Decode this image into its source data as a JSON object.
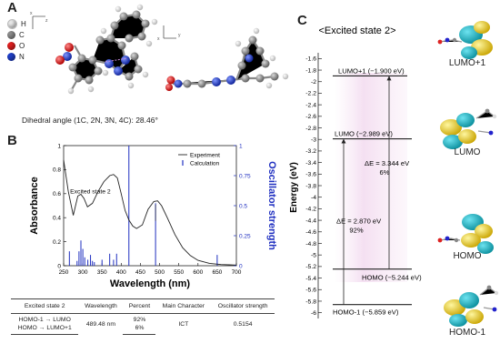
{
  "panelA": {
    "letter": "A",
    "legend": [
      {
        "sym": "H",
        "color": "#e8e8e8"
      },
      {
        "sym": "C",
        "color": "#8c8c8c"
      },
      {
        "sym": "O",
        "color": "#e02020"
      },
      {
        "sym": "N",
        "color": "#1f3fc8"
      }
    ],
    "dihedral_text": "Dihedral angle (1C, 2N, 3N, 4C): 28.46°"
  },
  "panelB": {
    "letter": "B",
    "chart_data": {
      "type": "line",
      "xlabel": "Wavelength (nm)",
      "ylabel": "Absorbance",
      "y2label": "Oscillator strength",
      "xlim": [
        250,
        700
      ],
      "ylim": [
        0,
        1.0
      ],
      "y2lim": [
        0,
        1.0
      ],
      "xticks": [
        250,
        300,
        350,
        400,
        450,
        500,
        550,
        600,
        650,
        700
      ],
      "yticks": [
        0,
        0.2,
        0.4,
        0.6,
        0.8,
        1.0
      ],
      "y2ticks": [
        0,
        0.25,
        0.5,
        0.75,
        1
      ],
      "series": [
        {
          "name": "Experiment",
          "x": [
            250,
            262,
            275,
            287,
            295,
            303,
            312,
            325,
            340,
            355,
            370,
            380,
            390,
            400,
            410,
            420,
            430,
            440,
            455,
            470,
            485,
            495,
            505,
            520,
            540,
            560,
            580,
            600,
            630,
            660,
            700
          ],
          "y": [
            0.88,
            0.62,
            0.42,
            0.58,
            0.595,
            0.56,
            0.49,
            0.52,
            0.62,
            0.7,
            0.75,
            0.76,
            0.73,
            0.6,
            0.46,
            0.38,
            0.33,
            0.31,
            0.34,
            0.47,
            0.535,
            0.54,
            0.5,
            0.4,
            0.26,
            0.15,
            0.085,
            0.045,
            0.02,
            0.01,
            0.005
          ]
        },
        {
          "name": "Calculation",
          "x": [
            265,
            285,
            290,
            295,
            300,
            305,
            313,
            320,
            325,
            330,
            350,
            370,
            380,
            388,
            420,
            489.48,
            650
          ],
          "f": [
            0.12,
            0.04,
            0.12,
            0.21,
            0.14,
            0.07,
            0.05,
            0.09,
            0.04,
            0.03,
            0.05,
            0.1,
            0.05,
            0.1,
            1.0,
            0.52,
            0.09
          ]
        }
      ],
      "legend": [
        "Experiment",
        "Calculation"
      ],
      "annotation": "Excited state 2"
    }
  },
  "table": {
    "headers": [
      "Excited state 2",
      "Wavelength",
      "Percent",
      "Main Character",
      "Oscillator strength"
    ],
    "rows": [
      {
        "transition": "HOMO-1 → LUMO",
        "percent": "92%"
      },
      {
        "transition": "HOMO → LUMO+1",
        "percent": "6%"
      }
    ],
    "wavelength": "489.48 nm",
    "main_character": "ICT",
    "oscillator_strength": "0.5154"
  },
  "panelC": {
    "letter": "C",
    "title": "<Excited state 2>",
    "ylabel": "Energy (eV)",
    "ylim": [
      -6.1,
      -1.5
    ],
    "yticks": [
      -1.6,
      -1.8,
      -2,
      -2.2,
      -2.4,
      -2.6,
      -2.8,
      -3,
      -3.2,
      -3.4,
      -3.6,
      -3.8,
      -4,
      -4.2,
      -4.4,
      -4.6,
      -4.8,
      -5,
      -5.2,
      -5.4,
      -5.6,
      -5.8,
      -6
    ],
    "levels": [
      {
        "name": "LUMO+1",
        "energy": -1.9,
        "label": "LUMO+1 (−1.900 eV)"
      },
      {
        "name": "LUMO",
        "energy": -2.989,
        "label": "LUMO (−2.989 eV)"
      },
      {
        "name": "HOMO",
        "energy": -5.244,
        "label": "HOMO (−5.244 eV)"
      },
      {
        "name": "HOMO-1",
        "energy": -5.859,
        "label": "HOMO-1 (−5.859 eV)"
      }
    ],
    "transitions": [
      {
        "from": "HOMO-1",
        "to": "LUMO",
        "dE": "ΔE = 2.870 eV",
        "percent": "92%"
      },
      {
        "from": "HOMO",
        "to": "LUMO+1",
        "dE": "ΔE = 3.344 eV",
        "percent": "6%"
      }
    ],
    "orbital_labels": [
      "LUMO+1",
      "LUMO",
      "HOMO",
      "HOMO-1"
    ]
  }
}
